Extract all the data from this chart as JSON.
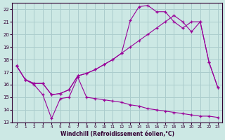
{
  "bg_color": "#cce8e4",
  "grid_color": "#aacccc",
  "line_color": "#990099",
  "xlim": [
    -0.5,
    23.5
  ],
  "ylim": [
    13,
    22.5
  ],
  "xlabel": "Windchill (Refroidissement éolien,°C)",
  "xticks": [
    0,
    1,
    2,
    3,
    4,
    5,
    6,
    7,
    8,
    9,
    10,
    11,
    12,
    13,
    14,
    15,
    16,
    17,
    18,
    19,
    20,
    21,
    22,
    23
  ],
  "yticks": [
    13,
    14,
    15,
    16,
    17,
    18,
    19,
    20,
    21,
    22
  ],
  "line1_x": [
    0,
    1,
    2,
    3,
    4,
    5,
    6,
    7,
    8,
    9,
    10,
    11,
    12,
    13,
    14,
    15,
    16,
    17,
    18,
    19,
    20,
    21,
    22,
    23
  ],
  "line1_y": [
    17.5,
    16.4,
    16.0,
    15.2,
    13.3,
    14.9,
    15.0,
    16.6,
    15.0,
    14.9,
    14.8,
    14.7,
    14.6,
    14.4,
    14.3,
    14.1,
    14.0,
    13.9,
    13.8,
    13.7,
    13.6,
    13.5,
    13.5,
    13.4
  ],
  "line2_x": [
    0,
    1,
    2,
    3,
    4,
    5,
    6,
    7,
    8,
    9,
    10,
    11,
    12,
    13,
    14,
    15,
    16,
    17,
    18,
    19,
    20,
    21,
    22,
    23
  ],
  "line2_y": [
    17.5,
    16.4,
    16.1,
    16.1,
    15.2,
    15.3,
    15.6,
    16.7,
    16.9,
    17.2,
    17.6,
    18.0,
    18.5,
    19.0,
    19.5,
    20.0,
    20.5,
    21.0,
    21.5,
    21.0,
    20.2,
    21.0,
    17.8,
    15.8
  ],
  "line3_x": [
    0,
    1,
    2,
    3,
    4,
    5,
    6,
    7,
    8,
    9,
    10,
    11,
    12,
    13,
    14,
    15,
    16,
    17,
    18,
    19,
    20,
    21,
    22,
    23
  ],
  "line3_y": [
    17.5,
    16.4,
    16.1,
    16.1,
    15.2,
    15.3,
    15.6,
    16.7,
    16.9,
    17.2,
    17.6,
    18.0,
    18.5,
    21.1,
    22.2,
    22.3,
    21.8,
    21.8,
    21.0,
    20.5,
    21.0,
    21.0,
    17.8,
    15.8
  ]
}
